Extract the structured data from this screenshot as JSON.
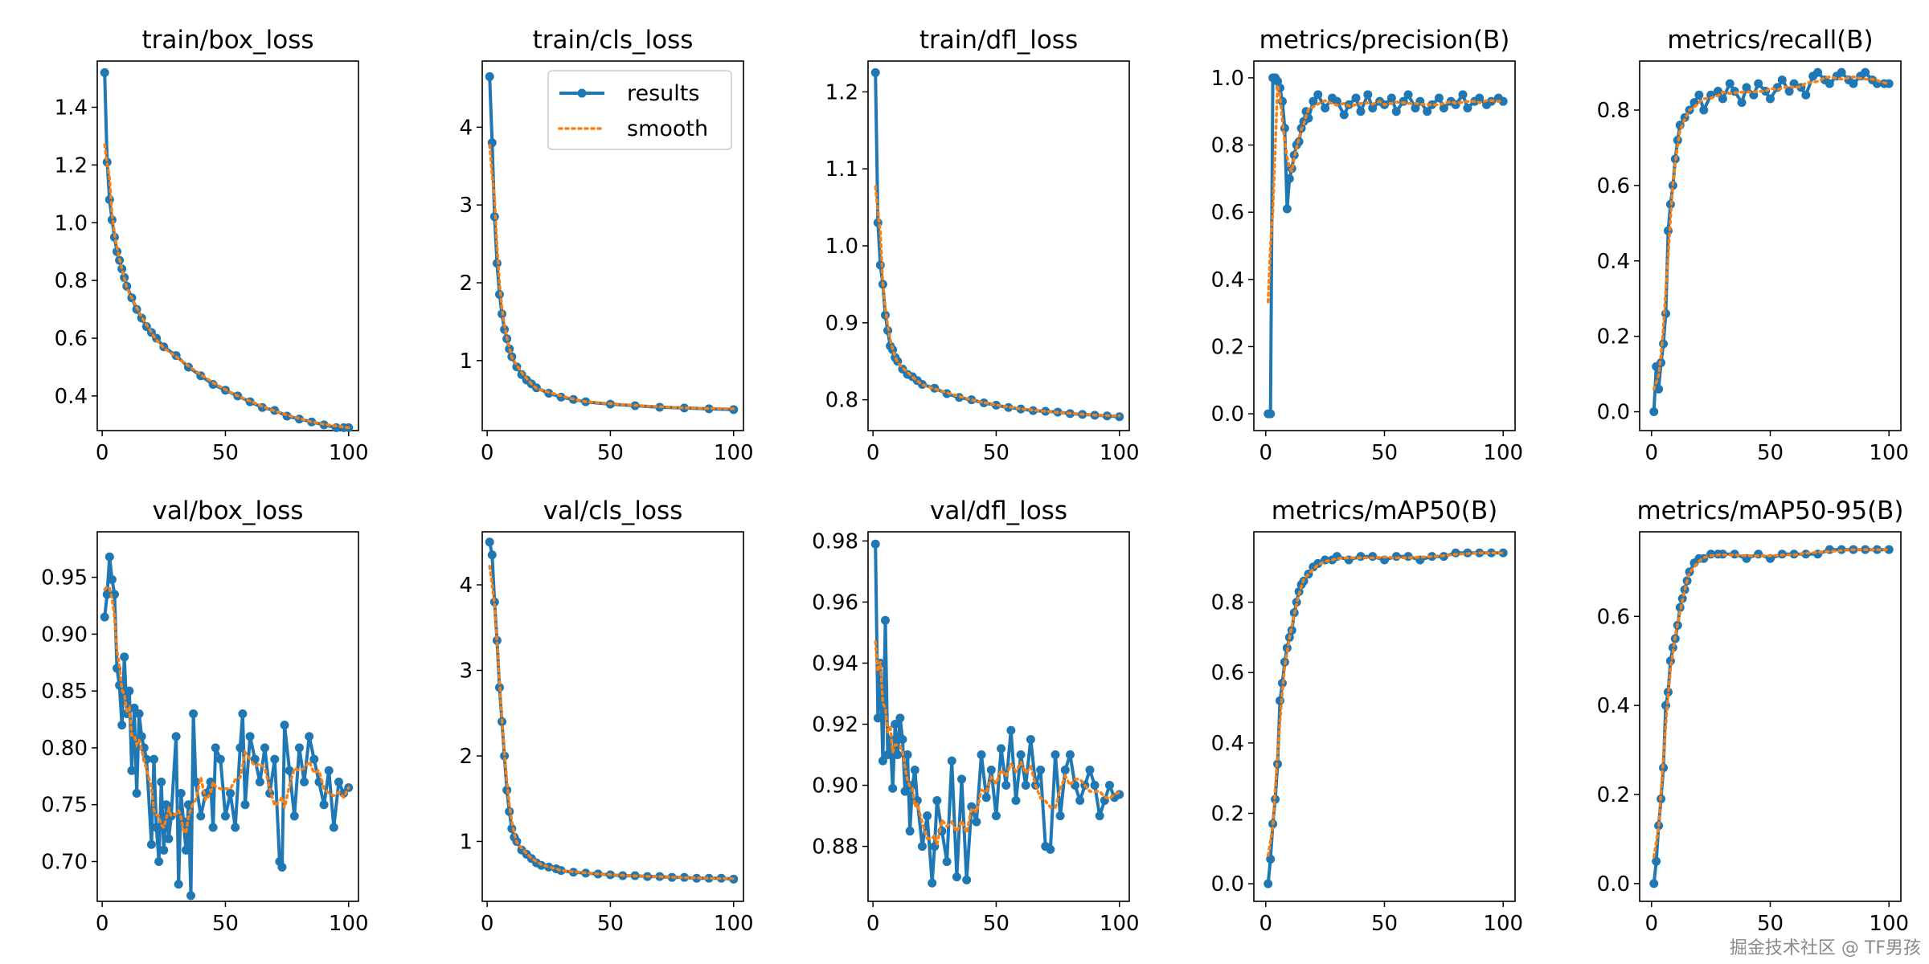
{
  "colors": {
    "results": "#1f77b4",
    "smooth": "#ff7f0e",
    "axes": "#000000",
    "background": "#ffffff"
  },
  "legend": {
    "results_label": "results",
    "smooth_label": "smooth",
    "location": "upper-right of train/cls_loss"
  },
  "watermark": "掘金技术社区 @ TF男孩",
  "chart_data": [
    {
      "type": "line",
      "title": "train/box_loss",
      "xlim": [
        -2,
        104
      ],
      "ylim": [
        0.28,
        1.56
      ],
      "xticks": [
        0,
        50,
        100
      ],
      "yticks": [
        0.4,
        0.6,
        0.8,
        1.0,
        1.2,
        1.4
      ],
      "series": [
        {
          "name": "results",
          "x": [
            1,
            2,
            3,
            4,
            5,
            6,
            7,
            8,
            9,
            10,
            12,
            14,
            16,
            18,
            20,
            22,
            25,
            30,
            35,
            40,
            45,
            50,
            55,
            60,
            65,
            70,
            75,
            80,
            85,
            90,
            95,
            98,
            100
          ],
          "values": [
            1.52,
            1.21,
            1.08,
            1.01,
            0.95,
            0.9,
            0.87,
            0.84,
            0.81,
            0.78,
            0.74,
            0.7,
            0.67,
            0.64,
            0.62,
            0.6,
            0.57,
            0.54,
            0.5,
            0.47,
            0.44,
            0.42,
            0.4,
            0.38,
            0.36,
            0.35,
            0.33,
            0.32,
            0.31,
            0.3,
            0.29,
            0.29,
            0.29
          ]
        }
      ]
    },
    {
      "type": "line",
      "title": "train/cls_loss",
      "xlim": [
        -2,
        104
      ],
      "ylim": [
        0.1,
        4.85
      ],
      "xticks": [
        0,
        50,
        100
      ],
      "yticks": [
        1,
        2,
        3,
        4
      ],
      "series": [
        {
          "name": "results",
          "x": [
            1,
            2,
            3,
            4,
            5,
            6,
            7,
            8,
            9,
            10,
            12,
            14,
            16,
            18,
            20,
            25,
            30,
            35,
            40,
            50,
            60,
            70,
            80,
            90,
            100
          ],
          "values": [
            4.65,
            3.8,
            2.85,
            2.25,
            1.85,
            1.6,
            1.4,
            1.28,
            1.15,
            1.05,
            0.92,
            0.82,
            0.75,
            0.7,
            0.65,
            0.58,
            0.53,
            0.5,
            0.47,
            0.44,
            0.42,
            0.4,
            0.39,
            0.38,
            0.37
          ]
        }
      ]
    },
    {
      "type": "line",
      "title": "train/dfl_loss",
      "xlim": [
        -2,
        104
      ],
      "ylim": [
        0.76,
        1.24
      ],
      "xticks": [
        0,
        50,
        100
      ],
      "yticks": [
        0.8,
        0.9,
        1.0,
        1.1,
        1.2
      ],
      "series": [
        {
          "name": "results",
          "x": [
            1,
            2,
            3,
            4,
            5,
            6,
            7,
            8,
            9,
            10,
            12,
            14,
            16,
            18,
            20,
            25,
            30,
            35,
            40,
            45,
            50,
            55,
            60,
            65,
            70,
            75,
            80,
            85,
            90,
            95,
            100
          ],
          "values": [
            1.225,
            1.03,
            0.975,
            0.95,
            0.91,
            0.89,
            0.87,
            0.865,
            0.855,
            0.85,
            0.84,
            0.833,
            0.83,
            0.825,
            0.82,
            0.815,
            0.808,
            0.803,
            0.8,
            0.796,
            0.793,
            0.79,
            0.788,
            0.786,
            0.785,
            0.784,
            0.782,
            0.781,
            0.78,
            0.779,
            0.778
          ]
        }
      ]
    },
    {
      "type": "line",
      "title": "metrics/precision(B)",
      "xlim": [
        -5,
        105
      ],
      "ylim": [
        -0.05,
        1.05
      ],
      "xticks": [
        0,
        50,
        100
      ],
      "yticks": [
        0.0,
        0.2,
        0.4,
        0.6,
        0.8,
        1.0
      ],
      "series": [
        {
          "name": "results",
          "x": [
            1,
            2,
            3,
            4,
            5,
            6,
            7,
            8,
            9,
            10,
            11,
            12,
            13,
            14,
            15,
            16,
            17,
            18,
            20,
            22,
            25,
            28,
            30,
            33,
            35,
            38,
            40,
            43,
            45,
            48,
            50,
            53,
            55,
            58,
            60,
            63,
            65,
            68,
            70,
            73,
            75,
            78,
            80,
            83,
            85,
            88,
            90,
            93,
            95,
            98,
            100
          ],
          "values": [
            0.0,
            0.0,
            1.0,
            1.0,
            0.99,
            0.97,
            0.93,
            0.85,
            0.61,
            0.7,
            0.73,
            0.77,
            0.8,
            0.81,
            0.85,
            0.87,
            0.9,
            0.88,
            0.93,
            0.95,
            0.91,
            0.94,
            0.93,
            0.89,
            0.92,
            0.94,
            0.9,
            0.95,
            0.91,
            0.93,
            0.92,
            0.94,
            0.9,
            0.93,
            0.95,
            0.91,
            0.93,
            0.9,
            0.92,
            0.94,
            0.91,
            0.93,
            0.92,
            0.95,
            0.91,
            0.93,
            0.94,
            0.92,
            0.93,
            0.94,
            0.93
          ]
        }
      ]
    },
    {
      "type": "line",
      "title": "metrics/recall(B)",
      "xlim": [
        -5,
        105
      ],
      "ylim": [
        -0.05,
        0.93
      ],
      "xticks": [
        0,
        50,
        100
      ],
      "yticks": [
        0.0,
        0.2,
        0.4,
        0.6,
        0.8
      ],
      "series": [
        {
          "name": "results",
          "x": [
            1,
            2,
            3,
            4,
            5,
            6,
            7,
            8,
            9,
            10,
            11,
            12,
            14,
            16,
            18,
            20,
            22,
            25,
            28,
            30,
            33,
            35,
            38,
            40,
            43,
            45,
            48,
            50,
            53,
            55,
            58,
            60,
            63,
            65,
            68,
            70,
            73,
            75,
            78,
            80,
            83,
            85,
            88,
            90,
            93,
            95,
            98,
            100
          ],
          "values": [
            0.0,
            0.12,
            0.06,
            0.13,
            0.18,
            0.26,
            0.48,
            0.55,
            0.6,
            0.67,
            0.72,
            0.76,
            0.78,
            0.8,
            0.82,
            0.84,
            0.8,
            0.84,
            0.85,
            0.83,
            0.87,
            0.85,
            0.82,
            0.86,
            0.84,
            0.87,
            0.85,
            0.83,
            0.86,
            0.88,
            0.85,
            0.87,
            0.86,
            0.84,
            0.89,
            0.9,
            0.88,
            0.87,
            0.89,
            0.9,
            0.88,
            0.87,
            0.89,
            0.9,
            0.88,
            0.87,
            0.87,
            0.87
          ]
        }
      ]
    },
    {
      "type": "line",
      "title": "val/box_loss",
      "xlim": [
        -2,
        104
      ],
      "ylim": [
        0.665,
        0.99
      ],
      "xticks": [
        0,
        50,
        100
      ],
      "yticks": [
        0.7,
        0.75,
        0.8,
        0.85,
        0.9,
        0.95
      ],
      "series": [
        {
          "name": "results",
          "x": [
            1,
            2,
            3,
            4,
            5,
            6,
            7,
            8,
            9,
            10,
            11,
            12,
            13,
            14,
            15,
            16,
            17,
            18,
            20,
            21,
            22,
            23,
            24,
            25,
            26,
            27,
            28,
            30,
            31,
            32,
            33,
            34,
            35,
            36,
            37,
            38,
            40,
            42,
            44,
            45,
            46,
            48,
            50,
            52,
            54,
            56,
            57,
            58,
            60,
            62,
            64,
            66,
            68,
            70,
            72,
            73,
            74,
            76,
            78,
            80,
            82,
            84,
            86,
            88,
            90,
            92,
            94,
            96,
            98,
            100
          ],
          "values": [
            0.915,
            0.935,
            0.968,
            0.948,
            0.935,
            0.87,
            0.855,
            0.82,
            0.88,
            0.83,
            0.85,
            0.78,
            0.835,
            0.76,
            0.83,
            0.81,
            0.8,
            0.79,
            0.715,
            0.79,
            0.73,
            0.7,
            0.77,
            0.71,
            0.75,
            0.72,
            0.74,
            0.81,
            0.68,
            0.76,
            0.735,
            0.71,
            0.75,
            0.67,
            0.83,
            0.77,
            0.74,
            0.76,
            0.77,
            0.73,
            0.8,
            0.79,
            0.74,
            0.76,
            0.73,
            0.8,
            0.83,
            0.75,
            0.81,
            0.79,
            0.77,
            0.8,
            0.76,
            0.79,
            0.7,
            0.695,
            0.82,
            0.78,
            0.74,
            0.8,
            0.77,
            0.81,
            0.79,
            0.77,
            0.75,
            0.78,
            0.73,
            0.77,
            0.76,
            0.765
          ]
        }
      ]
    },
    {
      "type": "line",
      "title": "val/cls_loss",
      "xlim": [
        -2,
        104
      ],
      "ylim": [
        0.3,
        4.62
      ],
      "xticks": [
        0,
        50,
        100
      ],
      "yticks": [
        1,
        2,
        3,
        4
      ],
      "series": [
        {
          "name": "results",
          "x": [
            1,
            2,
            3,
            4,
            5,
            6,
            7,
            8,
            9,
            10,
            11,
            12,
            14,
            16,
            18,
            20,
            22,
            25,
            28,
            30,
            35,
            40,
            45,
            50,
            55,
            60,
            65,
            70,
            75,
            80,
            85,
            90,
            95,
            100
          ],
          "values": [
            4.5,
            4.35,
            3.8,
            3.35,
            2.8,
            2.4,
            2.0,
            1.6,
            1.35,
            1.15,
            1.05,
            1.0,
            0.9,
            0.85,
            0.8,
            0.75,
            0.72,
            0.7,
            0.68,
            0.66,
            0.64,
            0.63,
            0.62,
            0.61,
            0.6,
            0.6,
            0.59,
            0.59,
            0.58,
            0.58,
            0.57,
            0.57,
            0.57,
            0.56
          ]
        }
      ]
    },
    {
      "type": "line",
      "title": "val/dfl_loss",
      "xlim": [
        -2,
        104
      ],
      "ylim": [
        0.862,
        0.983
      ],
      "xticks": [
        0,
        50,
        100
      ],
      "yticks": [
        0.88,
        0.9,
        0.92,
        0.94,
        0.96,
        0.98
      ],
      "series": [
        {
          "name": "results",
          "x": [
            1,
            2,
            3,
            4,
            5,
            6,
            7,
            8,
            9,
            10,
            11,
            12,
            13,
            14,
            15,
            16,
            17,
            18,
            20,
            22,
            24,
            25,
            26,
            28,
            30,
            32,
            34,
            36,
            38,
            40,
            42,
            44,
            46,
            48,
            50,
            52,
            54,
            56,
            58,
            60,
            62,
            64,
            66,
            68,
            70,
            72,
            74,
            76,
            78,
            80,
            82,
            84,
            86,
            88,
            90,
            92,
            94,
            96,
            98,
            100
          ],
          "values": [
            0.979,
            0.922,
            0.94,
            0.908,
            0.954,
            0.91,
            0.915,
            0.899,
            0.92,
            0.91,
            0.922,
            0.915,
            0.898,
            0.91,
            0.885,
            0.9,
            0.905,
            0.895,
            0.88,
            0.89,
            0.868,
            0.88,
            0.895,
            0.885,
            0.875,
            0.908,
            0.87,
            0.902,
            0.869,
            0.893,
            0.888,
            0.91,
            0.896,
            0.905,
            0.89,
            0.912,
            0.9,
            0.918,
            0.895,
            0.91,
            0.9,
            0.915,
            0.9,
            0.905,
            0.88,
            0.879,
            0.91,
            0.89,
            0.905,
            0.91,
            0.9,
            0.895,
            0.9,
            0.905,
            0.9,
            0.89,
            0.895,
            0.9,
            0.896,
            0.897
          ]
        }
      ]
    },
    {
      "type": "line",
      "title": "metrics/mAP50(B)",
      "xlim": [
        -5,
        105
      ],
      "ylim": [
        -0.05,
        1.0
      ],
      "xticks": [
        0,
        50,
        100
      ],
      "yticks": [
        0.0,
        0.2,
        0.4,
        0.6,
        0.8
      ],
      "series": [
        {
          "name": "results",
          "x": [
            1,
            2,
            3,
            4,
            5,
            6,
            7,
            8,
            9,
            10,
            11,
            12,
            13,
            14,
            15,
            16,
            18,
            20,
            22,
            25,
            28,
            30,
            35,
            40,
            45,
            50,
            55,
            60,
            65,
            70,
            75,
            80,
            85,
            90,
            95,
            100
          ],
          "values": [
            0.0,
            0.07,
            0.17,
            0.24,
            0.34,
            0.52,
            0.57,
            0.63,
            0.67,
            0.7,
            0.72,
            0.77,
            0.8,
            0.83,
            0.85,
            0.86,
            0.88,
            0.9,
            0.91,
            0.92,
            0.92,
            0.93,
            0.92,
            0.93,
            0.93,
            0.92,
            0.93,
            0.93,
            0.92,
            0.93,
            0.93,
            0.94,
            0.94,
            0.94,
            0.94,
            0.94
          ]
        }
      ]
    },
    {
      "type": "line",
      "title": "metrics/mAP50-95(B)",
      "xlim": [
        -5,
        105
      ],
      "ylim": [
        -0.04,
        0.79
      ],
      "xticks": [
        0,
        50,
        100
      ],
      "yticks": [
        0.0,
        0.2,
        0.4,
        0.6
      ],
      "series": [
        {
          "name": "results",
          "x": [
            1,
            2,
            3,
            4,
            5,
            6,
            7,
            8,
            9,
            10,
            11,
            12,
            13,
            14,
            15,
            16,
            18,
            20,
            22,
            25,
            28,
            30,
            35,
            40,
            45,
            50,
            55,
            60,
            65,
            70,
            75,
            80,
            85,
            90,
            95,
            100
          ],
          "values": [
            0.0,
            0.05,
            0.13,
            0.19,
            0.26,
            0.4,
            0.43,
            0.5,
            0.53,
            0.55,
            0.58,
            0.62,
            0.64,
            0.66,
            0.68,
            0.7,
            0.72,
            0.73,
            0.73,
            0.74,
            0.74,
            0.74,
            0.74,
            0.73,
            0.74,
            0.73,
            0.74,
            0.74,
            0.74,
            0.74,
            0.75,
            0.75,
            0.75,
            0.75,
            0.75,
            0.75
          ]
        }
      ]
    }
  ]
}
